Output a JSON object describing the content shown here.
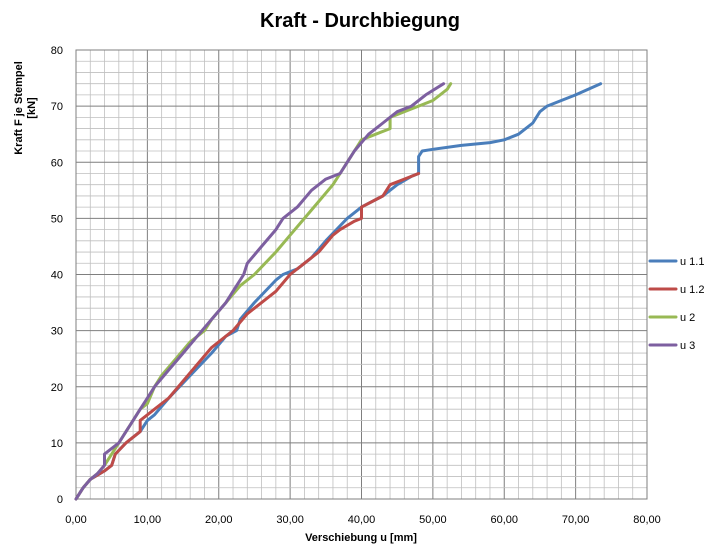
{
  "chart_data": {
    "type": "line",
    "title": "Kraft - Durchbiegung",
    "xlabel": "Verschiebung u [mm]",
    "ylabel": [
      "Kraft F je Stempel",
      "[kN]"
    ],
    "xlim": [
      0,
      80
    ],
    "ylim": [
      0,
      80
    ],
    "x_major_ticks": [
      0,
      10,
      20,
      30,
      40,
      50,
      60,
      70,
      80
    ],
    "x_tick_labels": [
      "0,00",
      "10,00",
      "20,00",
      "30,00",
      "40,00",
      "50,00",
      "60,00",
      "70,00",
      "80,00"
    ],
    "y_major_ticks": [
      0,
      10,
      20,
      30,
      40,
      50,
      60,
      70,
      80
    ],
    "y_tick_labels": [
      "0",
      "10",
      "20",
      "30",
      "40",
      "50",
      "60",
      "70",
      "80"
    ],
    "x_minor_step": 2,
    "y_minor_step": 2,
    "grid": true,
    "legend_position": "right",
    "series": [
      {
        "name": "u 1.1",
        "color": "#4a7ebb",
        "points": [
          [
            0,
            0
          ],
          [
            1,
            2
          ],
          [
            2,
            3.5
          ],
          [
            4,
            5
          ],
          [
            5,
            6
          ],
          [
            5.5,
            8
          ],
          [
            7,
            10
          ],
          [
            9,
            12
          ],
          [
            10,
            14
          ],
          [
            11,
            15
          ],
          [
            13,
            18
          ],
          [
            16,
            22
          ],
          [
            19,
            26
          ],
          [
            21,
            29
          ],
          [
            22.5,
            30
          ],
          [
            23,
            32
          ],
          [
            25,
            35
          ],
          [
            28,
            39
          ],
          [
            29,
            40
          ],
          [
            31,
            41
          ],
          [
            33,
            43
          ],
          [
            35,
            46
          ],
          [
            38,
            50
          ],
          [
            40,
            52
          ],
          [
            43,
            54
          ],
          [
            45,
            56
          ],
          [
            47,
            57.5
          ],
          [
            48,
            58
          ],
          [
            48,
            61
          ],
          [
            48.5,
            62
          ],
          [
            50,
            62.3
          ],
          [
            54,
            63
          ],
          [
            58,
            63.5
          ],
          [
            60,
            64
          ],
          [
            62,
            65
          ],
          [
            64,
            67
          ],
          [
            65,
            69
          ],
          [
            66,
            70
          ],
          [
            68,
            71
          ],
          [
            70,
            72
          ],
          [
            73.5,
            74
          ]
        ]
      },
      {
        "name": "u 1.2",
        "color": "#be4b48",
        "points": [
          [
            0,
            0
          ],
          [
            1,
            2
          ],
          [
            2,
            3.5
          ],
          [
            4,
            5
          ],
          [
            5,
            6
          ],
          [
            5.5,
            8
          ],
          [
            7,
            10
          ],
          [
            9,
            12
          ],
          [
            9,
            14
          ],
          [
            10,
            15
          ],
          [
            11,
            16
          ],
          [
            13,
            18
          ],
          [
            15,
            21
          ],
          [
            17,
            24
          ],
          [
            19,
            27
          ],
          [
            21,
            29
          ],
          [
            22,
            30
          ],
          [
            24,
            33
          ],
          [
            26,
            35
          ],
          [
            28,
            37
          ],
          [
            30,
            40
          ],
          [
            32,
            42
          ],
          [
            34,
            44
          ],
          [
            36,
            47
          ],
          [
            37,
            48
          ],
          [
            39,
            49.5
          ],
          [
            40,
            50
          ],
          [
            40,
            52
          ],
          [
            43,
            54
          ],
          [
            44,
            56
          ],
          [
            46,
            57
          ],
          [
            48,
            58
          ]
        ]
      },
      {
        "name": "u 2",
        "color": "#98b954",
        "points": [
          [
            0,
            0
          ],
          [
            1,
            2
          ],
          [
            2,
            3.5
          ],
          [
            3,
            4.5
          ],
          [
            4,
            6
          ],
          [
            5,
            8
          ],
          [
            6,
            10
          ],
          [
            7,
            12
          ],
          [
            8,
            14
          ],
          [
            9,
            16
          ],
          [
            10,
            17
          ],
          [
            11,
            20
          ],
          [
            12,
            22
          ],
          [
            14,
            25
          ],
          [
            16,
            28
          ],
          [
            18,
            30
          ],
          [
            19,
            32
          ],
          [
            21,
            35
          ],
          [
            23,
            38
          ],
          [
            25,
            40
          ],
          [
            28,
            44
          ],
          [
            30,
            47
          ],
          [
            32,
            50
          ],
          [
            34,
            53
          ],
          [
            36,
            56
          ],
          [
            37,
            58
          ],
          [
            38,
            60
          ],
          [
            39,
            62
          ],
          [
            40,
            64
          ],
          [
            42,
            65
          ],
          [
            44,
            66
          ],
          [
            44,
            68
          ],
          [
            46,
            69
          ],
          [
            48,
            70
          ],
          [
            50,
            71
          ],
          [
            52,
            73
          ],
          [
            52.5,
            74
          ]
        ]
      },
      {
        "name": "u 3",
        "color": "#7d5fa0",
        "points": [
          [
            0,
            0
          ],
          [
            1,
            2
          ],
          [
            2,
            3.5
          ],
          [
            3,
            4.5
          ],
          [
            4,
            6
          ],
          [
            4,
            8
          ],
          [
            6,
            10
          ],
          [
            7,
            12
          ],
          [
            8,
            14
          ],
          [
            9,
            16
          ],
          [
            10,
            18
          ],
          [
            11,
            20
          ],
          [
            13,
            23
          ],
          [
            15,
            26
          ],
          [
            17,
            29
          ],
          [
            19,
            32
          ],
          [
            21,
            35
          ],
          [
            22,
            37
          ],
          [
            23,
            39
          ],
          [
            23.5,
            40
          ],
          [
            24,
            42
          ],
          [
            26,
            45
          ],
          [
            28,
            48
          ],
          [
            29,
            50
          ],
          [
            31,
            52
          ],
          [
            33,
            55
          ],
          [
            35,
            57
          ],
          [
            37,
            58
          ],
          [
            38,
            60
          ],
          [
            39,
            62
          ],
          [
            41,
            65
          ],
          [
            43,
            67
          ],
          [
            45,
            69
          ],
          [
            47,
            70
          ],
          [
            49,
            72
          ],
          [
            51.5,
            74
          ]
        ]
      }
    ]
  }
}
